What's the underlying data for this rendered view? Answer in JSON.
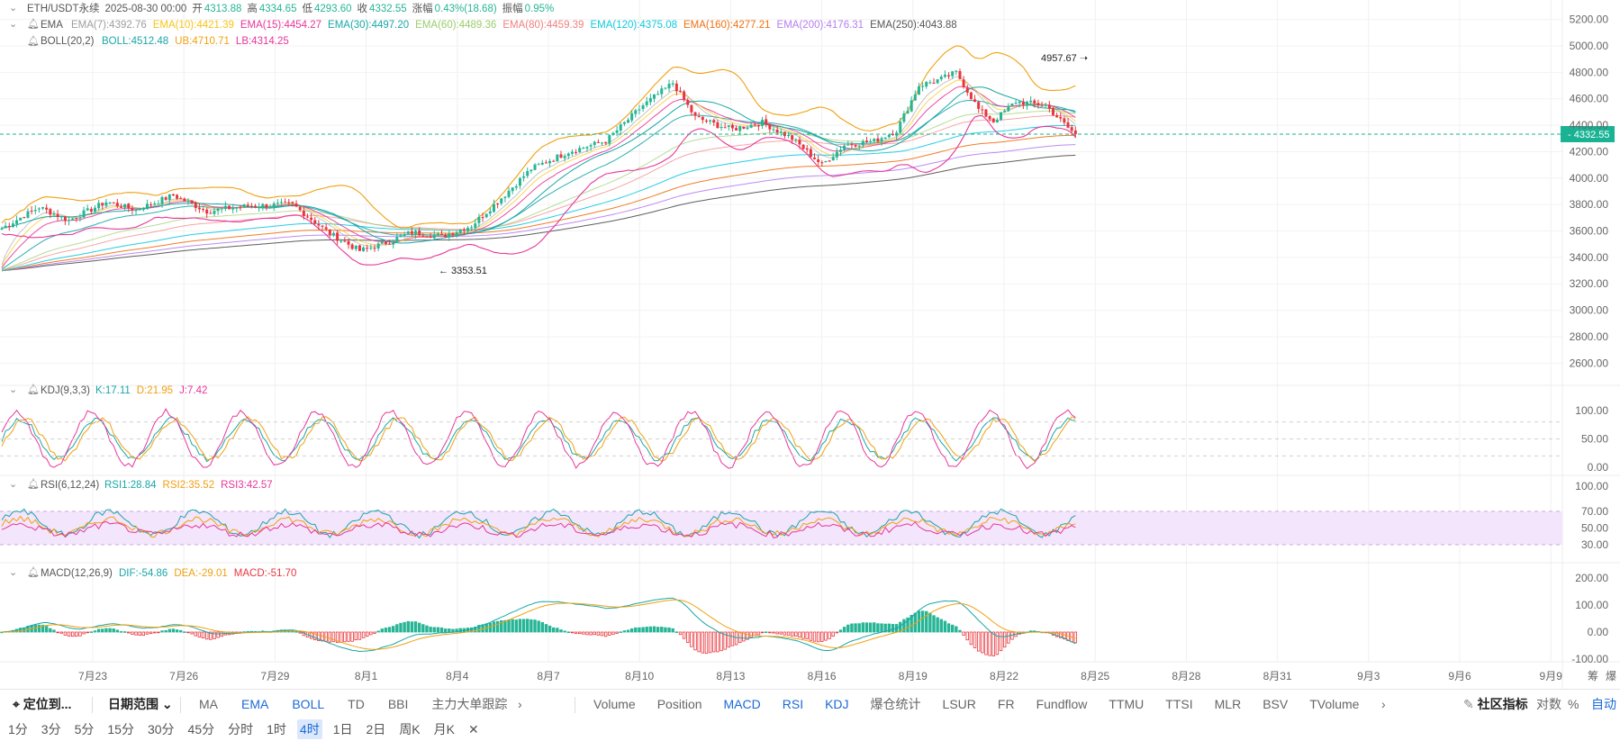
{
  "header": {
    "symbol": "ETH/USDT永续",
    "datetime": "2025-08-30 00:00",
    "ohlc": [
      {
        "label": "开",
        "value": "4313.88"
      },
      {
        "label": "高",
        "value": "4334.65"
      },
      {
        "label": "低",
        "value": "4293.60"
      },
      {
        "label": "收",
        "value": "4332.55"
      },
      {
        "label": "涨幅",
        "value": "0.43%(18.68)"
      },
      {
        "label": "振幅",
        "value": "0.95%"
      }
    ]
  },
  "indicators": {
    "ema_title": "EMA",
    "ema": [
      {
        "text": "EMA(7):4392.76",
        "color": "#9e9e9e"
      },
      {
        "text": "EMA(10):4421.39",
        "color": "#f7c414"
      },
      {
        "text": "EMA(15):4454.27",
        "color": "#e8369a"
      },
      {
        "text": "EMA(30):4497.20",
        "color": "#1aa6a6"
      },
      {
        "text": "EMA(60):4489.36",
        "color": "#9acd6a"
      },
      {
        "text": "EMA(80):4459.39",
        "color": "#f08080"
      },
      {
        "text": "EMA(120):4375.08",
        "color": "#10c8e0"
      },
      {
        "text": "EMA(160):4277.21",
        "color": "#f07010"
      },
      {
        "text": "EMA(200):4176.31",
        "color": "#b57ef0"
      },
      {
        "text": "EMA(250):4043.88",
        "color": "#555555"
      }
    ],
    "boll_title": "BOLL(20,2)",
    "boll": [
      {
        "text": "BOLL:4512.48",
        "color": "#1aa6a6"
      },
      {
        "text": "UB:4710.71",
        "color": "#f0a010"
      },
      {
        "text": "LB:4314.25",
        "color": "#e8369a"
      }
    ],
    "kdj_title": "KDJ(9,3,3)",
    "kdj": [
      {
        "text": "K:17.11",
        "color": "#1aa6a6"
      },
      {
        "text": "D:21.95",
        "color": "#f0a010"
      },
      {
        "text": "J:7.42",
        "color": "#e8369a"
      }
    ],
    "rsi_title": "RSI(6,12,24)",
    "rsi": [
      {
        "text": "RSI1:28.84",
        "color": "#1aa6a6"
      },
      {
        "text": "RSI2:35.52",
        "color": "#f0a010"
      },
      {
        "text": "RSI3:42.57",
        "color": "#e8369a"
      }
    ],
    "macd_title": "MACD(12,26,9)",
    "macd": [
      {
        "text": "DIF:-54.86",
        "color": "#1aa6a6"
      },
      {
        "text": "DEA:-29.01",
        "color": "#f0a010"
      },
      {
        "text": "MACD:-51.70",
        "color": "#e8363c"
      }
    ]
  },
  "chart_data": {
    "type": "candlestick",
    "x_labels": [
      "7月23",
      "7月26",
      "7月29",
      "8月1",
      "8月4",
      "8月7",
      "8月10",
      "8月13",
      "8月16",
      "8月19",
      "8月22",
      "8月25",
      "8月28",
      "8月31",
      "9月3",
      "9月6",
      "9月9"
    ],
    "price_axis": [
      "5200.00",
      "5000.00",
      "4800.00",
      "4600.00",
      "4400.00",
      "4200.00",
      "4000.00",
      "3800.00",
      "3600.00",
      "3400.00",
      "3200.00",
      "3000.00",
      "2800.00",
      "2600.00"
    ],
    "ylim": [
      2550,
      5250
    ],
    "close_key_points": [
      [
        0,
        3620
      ],
      [
        10,
        3780
      ],
      [
        18,
        3680
      ],
      [
        28,
        3820
      ],
      [
        36,
        3760
      ],
      [
        46,
        3870
      ],
      [
        55,
        3750
      ],
      [
        66,
        3790
      ],
      [
        78,
        3800
      ],
      [
        88,
        3580
      ],
      [
        96,
        3450
      ],
      [
        102,
        3500
      ],
      [
        110,
        3590
      ],
      [
        118,
        3560
      ],
      [
        126,
        3640
      ],
      [
        134,
        3850
      ],
      [
        142,
        4070
      ],
      [
        152,
        4200
      ],
      [
        162,
        4280
      ],
      [
        172,
        4550
      ],
      [
        180,
        4720
      ],
      [
        186,
        4460
      ],
      [
        192,
        4400
      ],
      [
        196,
        4370
      ],
      [
        204,
        4420
      ],
      [
        212,
        4300
      ],
      [
        220,
        4100
      ],
      [
        226,
        4250
      ],
      [
        234,
        4280
      ],
      [
        240,
        4360
      ],
      [
        246,
        4700
      ],
      [
        252,
        4750
      ],
      [
        256,
        4800
      ],
      [
        262,
        4520
      ],
      [
        266,
        4430
      ],
      [
        272,
        4580
      ],
      [
        280,
        4550
      ],
      [
        286,
        4380
      ],
      [
        288,
        4332.55
      ]
    ],
    "high_label": "4957.67",
    "low_label": "3353.51",
    "last_price": "4332.55",
    "kdj_axis": [
      "100.00",
      "50.00",
      "0.00"
    ],
    "rsi_axis": [
      "100.00",
      "70.00",
      "50.00",
      "30.00"
    ],
    "macd_axis": [
      "200.00",
      "100.00",
      "0.00",
      "-100.00"
    ]
  },
  "toolbar": {
    "locate_label": "定位到...",
    "date_range_label": "日期范围",
    "main_indicators": [
      "MA",
      "EMA",
      "BOLL",
      "TD",
      "BBI",
      "主力大单跟踪"
    ],
    "main_active": [
      "EMA",
      "BOLL"
    ],
    "sub_indicators": [
      "Volume",
      "Position",
      "MACD",
      "RSI",
      "KDJ",
      "爆仓统计",
      "LSUR",
      "FR",
      "Fundflow",
      "TTMU",
      "TTSI",
      "MLR",
      "BSV",
      "TVolume"
    ],
    "sub_active": [
      "MACD",
      "RSI",
      "KDJ"
    ],
    "community_label": "社区指标",
    "right_options": [
      "对数",
      "%",
      "自动"
    ],
    "right_side_labels": [
      "筹",
      "爆"
    ]
  },
  "timeframes": [
    "1分",
    "3分",
    "5分",
    "15分",
    "30分",
    "45分",
    "分时",
    "1时",
    "4时",
    "1日",
    "2日",
    "周K",
    "月K"
  ],
  "selected_timeframe": "4时",
  "colors": {
    "up": "#26b595",
    "down": "#e8363c",
    "accent": "#1b6ad6",
    "price_tag": "#19b394",
    "rsi_band": "#f3e5fb"
  }
}
